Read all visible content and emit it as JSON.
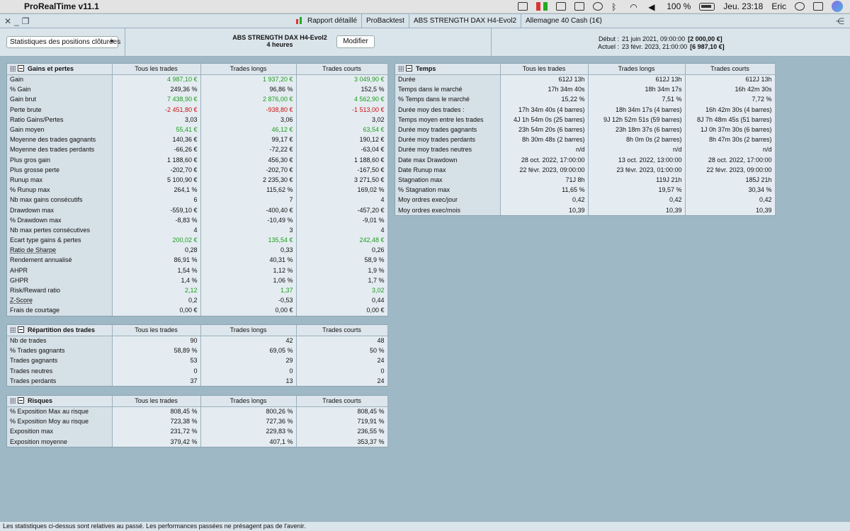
{
  "menubar": {
    "app_name": "ProRealTime v11.1",
    "battery": "100 %",
    "clock": "Jeu. 23:18",
    "user": "Eric"
  },
  "toolbar": {
    "items": [
      "Rapport détaillé",
      "ProBacktest",
      "ABS STRENGTH DAX H4-Evol2",
      "Allemagne 40 Cash (1€)"
    ]
  },
  "header": {
    "dropdown_value": "Statistiques des positions clôturées",
    "strategy_name": "ABS STRENGTH DAX H4-Evol2",
    "timeframe": "4 heures",
    "modify_button": "Modifier",
    "start_label": "Début :",
    "start_date": "21 juin 2021, 09:00:00",
    "start_value": "[2 000,00 €]",
    "current_label": "Actuel :",
    "current_date": "23 févr. 2023, 21:00:00",
    "current_value": "[6 987,10 €]"
  },
  "columns": [
    "Tous les trades",
    "Trades longs",
    "Trades courts"
  ],
  "gains": {
    "title": "Gains et pertes",
    "rows": [
      {
        "label": "Gain",
        "values": [
          "4 987,10 €",
          "1 937,20 €",
          "3 049,90 €"
        ],
        "tone": "pos"
      },
      {
        "label": "% Gain",
        "values": [
          "249,36 %",
          "96,86 %",
          "152,5 %"
        ],
        "tone": ""
      },
      {
        "label": "Gain brut",
        "values": [
          "7 438,90 €",
          "2 876,00 €",
          "4 562,90 €"
        ],
        "tone": "pos"
      },
      {
        "label": "Perte brute",
        "values": [
          "-2 451,80 €",
          "-938,80 €",
          "-1 513,00 €"
        ],
        "tone": "neg"
      },
      {
        "label": "Ratio Gains/Pertes",
        "values": [
          "3,03",
          "3,06",
          "3,02"
        ],
        "tone": ""
      },
      {
        "label": "Gain moyen",
        "values": [
          "55,41 €",
          "46,12 €",
          "63,54 €"
        ],
        "tone": "pos"
      },
      {
        "label": "Moyenne des trades gagnants",
        "values": [
          "140,36 €",
          "99,17 €",
          "190,12 €"
        ],
        "tone": ""
      },
      {
        "label": "Moyenne des trades perdants",
        "values": [
          "-66,26 €",
          "-72,22 €",
          "-63,04 €"
        ],
        "tone": ""
      },
      {
        "label": "Plus gros gain",
        "values": [
          "1 188,60 €",
          "456,30 €",
          "1 188,60 €"
        ],
        "tone": ""
      },
      {
        "label": "Plus grosse perte",
        "values": [
          "-202,70 €",
          "-202,70 €",
          "-167,50 €"
        ],
        "tone": ""
      },
      {
        "label": "Runup max",
        "values": [
          "5 100,90 €",
          "2 235,30 €",
          "3 271,50 €"
        ],
        "tone": ""
      },
      {
        "label": "% Runup max",
        "values": [
          "264,1 %",
          "115,62 %",
          "169,02 %"
        ],
        "tone": ""
      },
      {
        "label": "Nb max gains consécutifs",
        "values": [
          "6",
          "7",
          "4"
        ],
        "tone": ""
      },
      {
        "label": "Drawdown max",
        "values": [
          "-559,10 €",
          "-400,40 €",
          "-457,20 €"
        ],
        "tone": ""
      },
      {
        "label": "% Drawdown max",
        "values": [
          "-8,83 %",
          "-10,49 %",
          "-9,01 %"
        ],
        "tone": ""
      },
      {
        "label": "Nb max pertes consécutives",
        "values": [
          "4",
          "3",
          "4"
        ],
        "tone": ""
      },
      {
        "label": "Ecart type gains & pertes",
        "values": [
          "200,02 €",
          "135,54 €",
          "242,48 €"
        ],
        "tone": "pos"
      },
      {
        "label": "Ratio de Sharpe",
        "values": [
          "0,28",
          "0,33",
          "0,26"
        ],
        "tone": "",
        "ul": true
      },
      {
        "label": "Rendement annualisé",
        "values": [
          "86,91 %",
          "40,31 %",
          "58,9 %"
        ],
        "tone": ""
      },
      {
        "label": "AHPR",
        "values": [
          "1,54 %",
          "1,12 %",
          "1,9 %"
        ],
        "tone": ""
      },
      {
        "label": "GHPR",
        "values": [
          "1,4 %",
          "1,06 %",
          "1,7 %"
        ],
        "tone": ""
      },
      {
        "label": "Risk/Reward ratio",
        "values": [
          "2,12",
          "1,37",
          "3,02"
        ],
        "tone": "pos"
      },
      {
        "label": "Z-Score",
        "values": [
          "0,2",
          "-0,53",
          "0,44"
        ],
        "tone": "",
        "ul": true
      },
      {
        "label": "Frais de courtage",
        "values": [
          "0,00 €",
          "0,00 €",
          "0,00 €"
        ],
        "tone": ""
      }
    ]
  },
  "repartition": {
    "title": "Répartition des trades",
    "rows": [
      {
        "label": "Nb de trades",
        "values": [
          "90",
          "42",
          "48"
        ],
        "tone": ""
      },
      {
        "label": "% Trades gagnants",
        "values": [
          "58,89 %",
          "69,05 %",
          "50 %"
        ],
        "tone": ""
      },
      {
        "label": "Trades gagnants",
        "values": [
          "53",
          "29",
          "24"
        ],
        "tone": ""
      },
      {
        "label": "Trades neutres",
        "values": [
          "0",
          "0",
          "0"
        ],
        "tone": ""
      },
      {
        "label": "Trades perdants",
        "values": [
          "37",
          "13",
          "24"
        ],
        "tone": ""
      }
    ]
  },
  "risques": {
    "title": "Risques",
    "rows": [
      {
        "label": "% Exposition Max au risque",
        "values": [
          "808,45 %",
          "800,26 %",
          "808,45 %"
        ],
        "tone": ""
      },
      {
        "label": "% Exposition Moy au risque",
        "values": [
          "723,38 %",
          "727,36 %",
          "719,91 %"
        ],
        "tone": ""
      },
      {
        "label": "Exposition max",
        "values": [
          "231,72 %",
          "229,83 %",
          "236,55 %"
        ],
        "tone": ""
      },
      {
        "label": "Exposition moyenne",
        "values": [
          "379,42 %",
          "407,1 %",
          "353,37 %"
        ],
        "tone": ""
      }
    ]
  },
  "temps": {
    "title": "Temps",
    "rows": [
      {
        "label": "Durée",
        "values": [
          "612J 13h",
          "612J 13h",
          "612J 13h"
        ],
        "tone": ""
      },
      {
        "label": "Temps dans le marché",
        "values": [
          "17h 34m 40s",
          "18h 34m 17s",
          "16h 42m 30s"
        ],
        "tone": ""
      },
      {
        "label": "% Temps dans le marché",
        "values": [
          "15,22 %",
          "7,51 %",
          "7,72 %"
        ],
        "tone": ""
      },
      {
        "label": "Durée moy des trades :",
        "values": [
          "17h 34m 40s (4 barres)",
          "18h 34m 17s (4 barres)",
          "16h 42m 30s (4 barres)"
        ],
        "tone": ""
      },
      {
        "label": "Temps moyen entre les trades",
        "values": [
          "4J 1h 54m 0s (25 barres)",
          "9J 12h 52m 51s (59 barres)",
          "8J 7h 48m 45s (51 barres)"
        ],
        "tone": ""
      },
      {
        "label": "Durée moy trades gagnants",
        "values": [
          "23h 54m 20s (6 barres)",
          "23h 18m 37s (6 barres)",
          "1J 0h 37m 30s (6 barres)"
        ],
        "tone": ""
      },
      {
        "label": "Durée moy trades perdants",
        "values": [
          "8h 30m 48s (2 barres)",
          "8h 0m 0s (2 barres)",
          "8h 47m 30s (2 barres)"
        ],
        "tone": ""
      },
      {
        "label": "Durée moy trades neutres",
        "values": [
          "n/d",
          "n/d",
          "n/d"
        ],
        "tone": ""
      },
      {
        "label": "Date max Drawdown",
        "values": [
          "28 oct. 2022, 17:00:00",
          "13 oct. 2022, 13:00:00",
          "28 oct. 2022, 17:00:00"
        ],
        "tone": ""
      },
      {
        "label": "Date Runup max",
        "values": [
          "22 févr. 2023, 09:00:00",
          "23 févr. 2023, 01:00:00",
          "22 févr. 2023, 09:00:00"
        ],
        "tone": ""
      },
      {
        "label": "Stagnation max",
        "values": [
          "71J 8h",
          "119J 21h",
          "185J 21h"
        ],
        "tone": ""
      },
      {
        "label": "% Stagnation max",
        "values": [
          "11,65 %",
          "19,57 %",
          "30,34 %"
        ],
        "tone": ""
      },
      {
        "label": "Moy ordres exec/jour",
        "values": [
          "0,42",
          "0,42",
          "0,42"
        ],
        "tone": ""
      },
      {
        "label": "Moy ordres exec/mois",
        "values": [
          "10,39",
          "10,39",
          "10,39"
        ],
        "tone": ""
      }
    ]
  },
  "footer": {
    "disclaimer": "Les statistiques ci-dessus sont relatives au passé. Les performances passées ne présagent pas de l'avenir."
  },
  "colors": {
    "positive": "#1e9b1e",
    "negative": "#cc1111",
    "background": "#9fb8c6"
  }
}
